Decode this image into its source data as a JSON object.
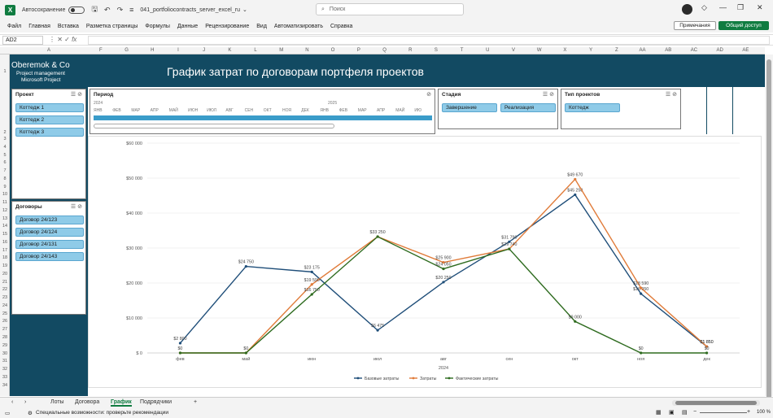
{
  "titlebar": {
    "autosave_label": "Автосохранение",
    "filename": "041_portfoliocontracts_server_excel_ru",
    "search_placeholder": "Поиск"
  },
  "menu": [
    "Файл",
    "Главная",
    "Вставка",
    "Разметка страницы",
    "Формулы",
    "Данные",
    "Рецензирование",
    "Вид",
    "Автоматизировать",
    "Справка"
  ],
  "ribbon_buttons": {
    "notes": "Примечания",
    "share": "Общий доступ"
  },
  "formula_bar": {
    "name_box": "AD2",
    "fx": "fx",
    "formula": ""
  },
  "columns": [
    "A",
    "F",
    "G",
    "H",
    "I",
    "J",
    "K",
    "L",
    "M",
    "N",
    "O",
    "P",
    "Q",
    "R",
    "S",
    "T",
    "U",
    "V",
    "W",
    "X",
    "Y",
    "Z",
    "AA",
    "AB",
    "AC",
    "AD",
    "AE"
  ],
  "rows": [
    "1",
    "2",
    "3",
    "4",
    "5",
    "6",
    "7",
    "8",
    "9",
    "10",
    "11",
    "12",
    "13",
    "14",
    "15",
    "16",
    "17",
    "18",
    "19",
    "20",
    "21",
    "22",
    "23",
    "24",
    "25",
    "26",
    "27",
    "28",
    "29",
    "30",
    "31",
    "32",
    "33",
    "34"
  ],
  "dashboard": {
    "company": "Oberemok & Co",
    "company_line2": "Project management",
    "company_line3": "Microsoft Project",
    "title": "График затрат по договорам портфеля проектов"
  },
  "slicers": {
    "project": {
      "title": "Проект",
      "items": [
        "Коттедж 1",
        "Коттедж 2",
        "Коттедж 3"
      ]
    },
    "contracts": {
      "title": "Договоры",
      "items": [
        "Договор 24/123",
        "Договор 24/124",
        "Договор 24/131",
        "Договор 24/143"
      ]
    },
    "stage": {
      "title": "Стадия",
      "items": [
        "Завершение",
        "Реализация"
      ]
    },
    "project_type": {
      "title": "Тип проектов",
      "items": [
        "Коттедж"
      ]
    },
    "period": {
      "title": "Период",
      "year1": "2024",
      "year2": "2025",
      "months": [
        "ЯНВ",
        "ФЕВ",
        "МАР",
        "АПР",
        "МАЙ",
        "ИЮН",
        "ИЮЛ",
        "АВГ",
        "СЕН",
        "ОКТ",
        "НОЯ",
        "ДЕК",
        "ЯНВ",
        "ФЕВ",
        "МАР",
        "АПР",
        "МАЙ",
        "ИЮ"
      ]
    }
  },
  "chart_data": {
    "type": "line",
    "categories": [
      "фев",
      "май",
      "июн",
      "июл",
      "авг",
      "сен",
      "окт",
      "ноя",
      "дек"
    ],
    "xlabel": "2024",
    "ylabel": "",
    "ylim": [
      0,
      60000
    ],
    "yticks": [
      "$ 0",
      "$10 000",
      "$20 000",
      "$30 000",
      "$40 000",
      "$50 000",
      "$60 000"
    ],
    "series": [
      {
        "name": "Базовые затраты",
        "color": "#1f4e79",
        "values": [
          2800,
          24750,
          23175,
          6475,
          20250,
          31790,
          45250,
          16950,
          1850
        ],
        "labels": [
          "$2 800",
          "$24 750",
          "$23 175",
          "$6 475",
          "$20 250",
          "$31 790",
          "$45 250",
          "$16 950",
          "$1 850"
        ]
      },
      {
        "name": "Затраты",
        "color": "#e07b39",
        "values": [
          0,
          0,
          19590,
          33250,
          25900,
          29740,
          49670,
          18590,
          1850
        ],
        "labels": [
          "$0",
          "$0",
          "$19 590",
          "$33 250",
          "$25 900",
          "$29 740",
          "$49 670",
          "$18 590",
          "$1 850"
        ]
      },
      {
        "name": "Фактические затраты",
        "color": "#2e6b1f",
        "values": [
          0,
          0,
          16750,
          33250,
          24050,
          29740,
          9000,
          0,
          0
        ],
        "labels": [
          "",
          "",
          "$16 750",
          "",
          "$24 050",
          "",
          "$9 000",
          "$0",
          "$0"
        ]
      }
    ]
  },
  "sheet_tabs": [
    "Лоты",
    "Договора",
    "График",
    "Подрядчики"
  ],
  "active_tab": "График",
  "status": {
    "accessibility": "Специальные возможности: проверьте рекомендации",
    "zoom": "100 %"
  }
}
